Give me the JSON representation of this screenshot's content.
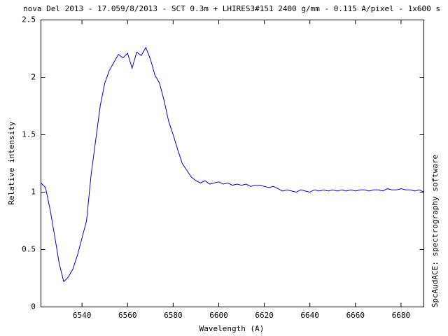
{
  "chart_data": {
    "type": "line",
    "title": "nova Del 2013 - 17.059/8/2013 - SCT 0.3m + LHIRES3#151 2400 g/mm - 0.115 A/pixel - 1x600 s",
    "x_label": "Wavelength (A)",
    "y_label": "Relative intensity",
    "side_note": "SpcAudACE: spectrography software",
    "x": [
      6522,
      6524,
      6526,
      6528,
      6530,
      6532,
      6534,
      6536,
      6538,
      6540,
      6542,
      6544,
      6546,
      6548,
      6550,
      6552,
      6554,
      6556,
      6558,
      6560,
      6562,
      6564,
      6566,
      6568,
      6570,
      6572,
      6574,
      6576,
      6578,
      6580,
      6582,
      6584,
      6586,
      6588,
      6590,
      6592,
      6594,
      6596,
      6598,
      6600,
      6602,
      6604,
      6606,
      6608,
      6610,
      6612,
      6614,
      6616,
      6618,
      6620,
      6622,
      6624,
      6626,
      6628,
      6630,
      6632,
      6634,
      6636,
      6638,
      6640,
      6642,
      6644,
      6646,
      6648,
      6650,
      6652,
      6654,
      6656,
      6658,
      6660,
      6662,
      6664,
      6666,
      6668,
      6670,
      6672,
      6674,
      6676,
      6678,
      6680,
      6682,
      6684,
      6686,
      6688,
      6690
    ],
    "values": [
      1.08,
      1.04,
      0.85,
      0.62,
      0.38,
      0.22,
      0.26,
      0.33,
      0.45,
      0.6,
      0.75,
      1.15,
      1.45,
      1.75,
      1.95,
      2.06,
      2.13,
      2.2,
      2.17,
      2.21,
      2.08,
      2.22,
      2.19,
      2.26,
      2.16,
      2.02,
      1.95,
      1.8,
      1.62,
      1.5,
      1.37,
      1.25,
      1.19,
      1.13,
      1.1,
      1.08,
      1.1,
      1.07,
      1.08,
      1.09,
      1.07,
      1.08,
      1.06,
      1.07,
      1.06,
      1.07,
      1.05,
      1.06,
      1.06,
      1.05,
      1.04,
      1.05,
      1.03,
      1.01,
      1.02,
      1.01,
      1.0,
      1.02,
      1.01,
      1.0,
      1.02,
      1.01,
      1.02,
      1.01,
      1.02,
      1.01,
      1.02,
      1.01,
      1.02,
      1.01,
      1.02,
      1.02,
      1.01,
      1.02,
      1.02,
      1.01,
      1.03,
      1.02,
      1.02,
      1.03,
      1.02,
      1.02,
      1.01,
      1.02,
      1.0
    ],
    "color": "#0000cc",
    "xlim": [
      6522,
      6690
    ],
    "xticks": [
      6540,
      6560,
      6580,
      6600,
      6620,
      6640,
      6660,
      6680
    ],
    "ylim": [
      0,
      2.5
    ],
    "yticks": [
      0,
      0.5,
      1,
      1.5,
      2,
      2.5
    ],
    "grid": false
  }
}
